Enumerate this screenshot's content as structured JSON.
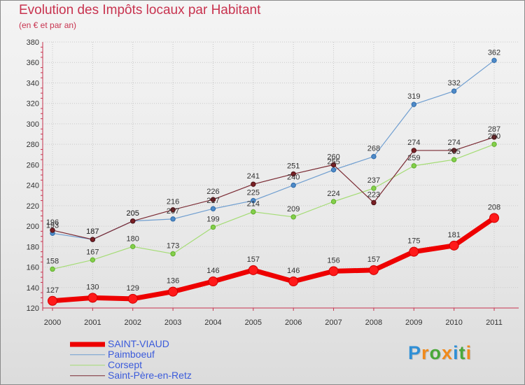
{
  "chart_data": {
    "type": "line",
    "title": "Evolution des Impôts locaux par Habitant",
    "subtitle": "(en € et par an)",
    "x": [
      "2000",
      "2001",
      "2002",
      "2003",
      "2004",
      "2005",
      "2006",
      "2007",
      "2008",
      "2009",
      "2010",
      "2011"
    ],
    "yticks": [
      "120",
      "140",
      "160",
      "180",
      "200",
      "220",
      "240",
      "260",
      "280",
      "300",
      "320",
      "340",
      "360",
      "380"
    ],
    "ylim": [
      120,
      380
    ],
    "series": [
      {
        "name": "SAINT-VIAUD",
        "values": [
          127,
          130,
          129,
          136,
          146,
          157,
          146,
          156,
          157,
          175,
          181,
          208
        ],
        "labels": [
          "127",
          "130",
          "129",
          "136",
          "146",
          "157",
          "146",
          "156",
          "157",
          "175",
          "181",
          "208"
        ],
        "color": "#ee0000",
        "dot_color": "#ff1a1a",
        "dot_stroke": "#d00000"
      },
      {
        "name": "Paimboeuf",
        "values": [
          193,
          187,
          205,
          207,
          217,
          225,
          240,
          255,
          268,
          319,
          332,
          362
        ],
        "labels": [
          "193",
          "187",
          "205",
          "207",
          "217",
          "225",
          "240",
          "255",
          "268",
          "319",
          "332",
          "362"
        ],
        "color": "#6f9ed0",
        "dot_color": "#4e8ac8",
        "dot_stroke": "#2f6aa8"
      },
      {
        "name": "Corsept",
        "values": [
          158,
          167,
          180,
          173,
          199,
          214,
          209,
          224,
          237,
          259,
          265,
          280
        ],
        "labels": [
          "158",
          "167",
          "180",
          "173",
          "199",
          "214",
          "209",
          "224",
          "237",
          "259",
          "265",
          "280"
        ],
        "color": "#a4dc74",
        "dot_color": "#84cf4a",
        "dot_stroke": "#5fae2c"
      },
      {
        "name": "Saint-Père-en-Retz",
        "values": [
          196,
          187,
          205,
          216,
          226,
          241,
          251,
          260,
          223,
          274,
          274,
          287
        ],
        "labels": [
          "196",
          "187",
          "205",
          "216",
          "226",
          "241",
          "251",
          "260",
          "223",
          "274",
          "274",
          "287"
        ],
        "color": "#7a2a33",
        "dot_color": "#7a1f24",
        "dot_stroke": "#4a1014"
      }
    ]
  },
  "logo": {
    "letters": [
      "P",
      "r",
      "o",
      "x",
      "i",
      "t",
      "i"
    ],
    "colors": [
      "#2f8fd6",
      "#f08a1c",
      "#4aa83a",
      "#f08a1c",
      "#2f8fd6",
      "#4aa83a",
      "#f08a1c"
    ]
  }
}
